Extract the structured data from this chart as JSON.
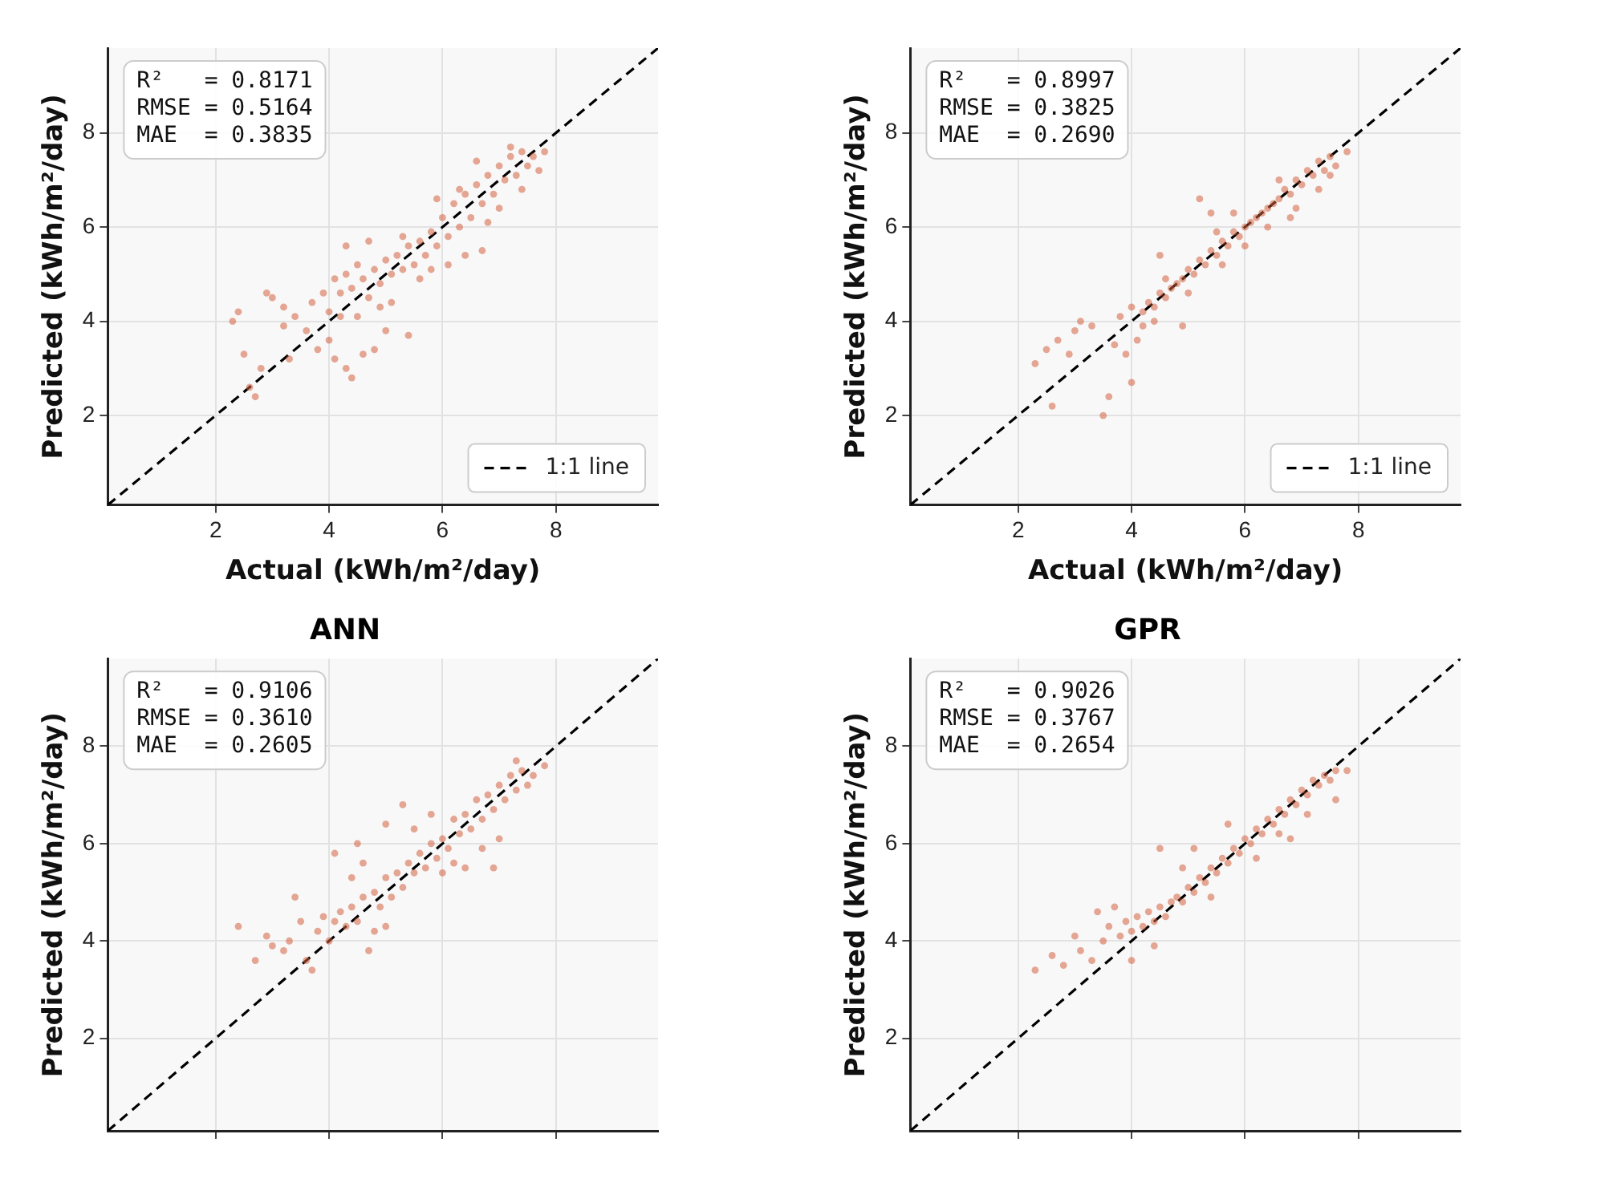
{
  "chart_data": [
    {
      "type": "scatter",
      "ylabel": "Predicted (kWh/m²/day)",
      "xlabel": "Actual (kWh/m²/day)",
      "xlim": [
        0.1,
        9.8
      ],
      "ylim": [
        0.1,
        9.8
      ],
      "xticks": [
        2,
        4,
        6,
        8
      ],
      "yticks": [
        2,
        4,
        6,
        8
      ],
      "grid": true,
      "legend": "bottom right",
      "annotations": [
        "R²   = 0.8171",
        "RMSE = 0.5164",
        "MAE  = 0.3835"
      ],
      "series": [
        {
          "type": "scatter",
          "color": "#d4603f",
          "marker": "circle",
          "x": [
            2.3,
            2.4,
            2.5,
            2.6,
            2.7,
            2.8,
            2.9,
            3.0,
            3.2,
            3.3,
            3.6,
            3.8,
            4.0,
            4.1,
            4.3,
            4.4,
            4.6,
            4.8,
            5.0,
            5.4,
            3.9,
            4.1,
            4.2,
            4.3,
            4.4,
            4.5,
            4.6,
            4.7,
            4.8,
            4.9,
            5.0,
            5.1,
            5.2,
            5.3,
            5.4,
            5.5,
            5.6,
            5.7,
            5.8,
            5.9,
            6.0,
            6.1,
            6.2,
            6.3,
            6.4,
            6.5,
            6.6,
            6.7,
            6.8,
            6.9,
            7.0,
            7.1,
            7.2,
            7.3,
            7.4,
            7.5,
            7.6,
            7.8,
            6.7,
            6.4,
            5.9,
            5.3,
            4.3,
            6.8,
            7.4,
            7.2,
            5.6,
            4.9,
            4.0,
            3.4,
            5.1,
            6.1,
            6.3,
            7.0,
            6.6,
            7.7,
            4.7,
            4.5,
            5.8,
            3.7,
            4.2,
            3.2
          ],
          "values": [
            4.0,
            4.2,
            3.3,
            2.6,
            2.4,
            3.0,
            4.6,
            4.5,
            4.3,
            3.2,
            3.8,
            3.4,
            3.6,
            3.2,
            3.0,
            2.8,
            3.3,
            3.4,
            3.8,
            3.7,
            4.6,
            4.9,
            4.6,
            5.0,
            4.7,
            5.2,
            4.9,
            4.5,
            5.1,
            4.8,
            5.3,
            5.0,
            5.4,
            5.1,
            5.6,
            5.2,
            5.7,
            5.4,
            5.9,
            5.6,
            6.2,
            5.8,
            6.5,
            6.0,
            6.7,
            6.2,
            6.9,
            6.5,
            7.1,
            6.7,
            7.3,
            7.0,
            7.5,
            7.1,
            7.6,
            7.3,
            7.5,
            7.6,
            5.5,
            5.4,
            6.6,
            5.8,
            5.6,
            6.1,
            6.8,
            7.7,
            4.9,
            4.3,
            4.2,
            4.1,
            4.4,
            5.2,
            6.8,
            6.4,
            7.4,
            7.2,
            5.7,
            4.1,
            5.1,
            4.4,
            4.1,
            3.9
          ]
        },
        {
          "type": "line",
          "name": "1:1 line",
          "color": "#000000",
          "marker": "none",
          "line_style": "dashed",
          "x": [
            0.1,
            9.8
          ],
          "values": [
            0.1,
            9.8
          ]
        }
      ]
    },
    {
      "type": "scatter",
      "ylabel": "Predicted (kWh/m²/day)",
      "xlabel": "Actual (kWh/m²/day)",
      "xlim": [
        0.1,
        9.8
      ],
      "ylim": [
        0.1,
        9.8
      ],
      "xticks": [
        2,
        4,
        6,
        8
      ],
      "yticks": [
        2,
        4,
        6,
        8
      ],
      "grid": true,
      "legend": "bottom right",
      "annotations": [
        "R²   = 0.8997",
        "RMSE = 0.3825",
        "MAE  = 0.2690"
      ],
      "series": [
        {
          "type": "scatter",
          "color": "#d4603f",
          "marker": "circle",
          "x": [
            2.3,
            2.5,
            2.6,
            2.7,
            2.9,
            3.0,
            3.1,
            3.3,
            3.5,
            3.6,
            3.7,
            3.9,
            4.0,
            4.1,
            4.2,
            4.5,
            4.9,
            5.2,
            5.4,
            5.6,
            3.8,
            4.0,
            4.2,
            4.3,
            4.4,
            4.5,
            4.6,
            4.7,
            4.8,
            4.9,
            5.0,
            5.1,
            5.2,
            5.3,
            5.4,
            5.5,
            5.6,
            5.7,
            5.8,
            5.9,
            6.0,
            6.1,
            6.2,
            6.3,
            6.4,
            6.5,
            6.6,
            6.7,
            6.8,
            6.9,
            7.0,
            7.1,
            7.2,
            7.3,
            7.4,
            7.5,
            7.6,
            7.8,
            6.8,
            6.4,
            6.0,
            5.0,
            4.6,
            7.3,
            5.8,
            6.9,
            4.4,
            5.5,
            6.6,
            7.5
          ],
          "values": [
            3.1,
            3.4,
            2.2,
            3.6,
            3.3,
            3.8,
            4.0,
            3.9,
            2.0,
            2.4,
            3.5,
            3.3,
            2.7,
            3.6,
            3.9,
            5.4,
            3.9,
            6.6,
            6.3,
            5.2,
            4.1,
            4.3,
            4.2,
            4.4,
            4.3,
            4.6,
            4.5,
            4.7,
            4.8,
            4.9,
            5.1,
            5.0,
            5.3,
            5.2,
            5.5,
            5.4,
            5.7,
            5.6,
            5.9,
            5.8,
            6.0,
            6.1,
            6.2,
            6.3,
            6.4,
            6.5,
            6.6,
            6.8,
            6.7,
            7.0,
            6.9,
            7.2,
            7.1,
            7.4,
            7.2,
            7.5,
            7.3,
            7.6,
            6.2,
            6.0,
            5.6,
            4.6,
            4.9,
            6.8,
            6.3,
            6.4,
            4.0,
            5.9,
            7.0,
            7.1
          ]
        },
        {
          "type": "line",
          "name": "1:1 line",
          "color": "#000000",
          "marker": "none",
          "line_style": "dashed",
          "x": [
            0.1,
            9.8
          ],
          "values": [
            0.1,
            9.8
          ]
        }
      ]
    },
    {
      "type": "scatter",
      "title": "ANN",
      "ylabel": "Predicted (kWh/m²/day)",
      "xlim": [
        0.1,
        9.8
      ],
      "ylim": [
        0.1,
        9.8
      ],
      "xticks": [
        2,
        4,
        6,
        8
      ],
      "yticks": [
        2,
        4,
        6,
        8
      ],
      "grid": true,
      "tick_labels": "y",
      "annotations": [
        "R²   = 0.9106",
        "RMSE = 0.3610",
        "MAE  = 0.2605"
      ],
      "series": [
        {
          "type": "scatter",
          "color": "#d4603f",
          "marker": "circle",
          "x": [
            2.4,
            2.7,
            2.9,
            3.0,
            3.2,
            3.3,
            3.5,
            3.6,
            3.8,
            3.9,
            4.0,
            4.1,
            4.2,
            4.3,
            4.4,
            4.5,
            4.6,
            4.7,
            4.8,
            4.9,
            5.0,
            5.1,
            5.2,
            5.3,
            5.4,
            5.5,
            5.6,
            5.7,
            5.8,
            5.9,
            6.0,
            6.1,
            6.2,
            6.3,
            6.4,
            6.5,
            6.6,
            6.7,
            6.8,
            6.9,
            7.0,
            7.1,
            7.2,
            7.3,
            7.4,
            7.5,
            7.6,
            7.8,
            4.1,
            5.3,
            6.7,
            6.4,
            7.0,
            3.4,
            5.0,
            5.5,
            6.0,
            4.4,
            4.8,
            7.3,
            3.7,
            4.6,
            5.8,
            6.2,
            4.5,
            5.0,
            6.9
          ],
          "values": [
            4.3,
            3.6,
            4.1,
            3.9,
            3.8,
            4.0,
            4.4,
            3.6,
            4.2,
            4.5,
            4.0,
            4.4,
            4.6,
            4.3,
            4.7,
            4.4,
            4.9,
            3.8,
            5.0,
            4.7,
            5.3,
            4.9,
            5.4,
            5.1,
            5.6,
            5.4,
            5.8,
            5.5,
            6.0,
            5.7,
            6.1,
            5.9,
            6.5,
            6.2,
            6.6,
            6.3,
            6.9,
            6.5,
            7.0,
            6.7,
            7.2,
            6.9,
            7.4,
            7.1,
            7.5,
            7.2,
            7.4,
            7.6,
            5.8,
            6.8,
            5.9,
            5.5,
            6.1,
            4.9,
            4.3,
            6.3,
            5.4,
            5.3,
            4.2,
            7.7,
            3.4,
            5.6,
            6.6,
            5.6,
            6.0,
            6.4,
            5.5
          ]
        },
        {
          "type": "line",
          "color": "#000000",
          "marker": "none",
          "line_style": "dashed",
          "x": [
            0.1,
            9.8
          ],
          "values": [
            0.1,
            9.8
          ]
        }
      ]
    },
    {
      "type": "scatter",
      "title": "GPR",
      "ylabel": "Predicted (kWh/m²/day)",
      "xlim": [
        0.1,
        9.8
      ],
      "ylim": [
        0.1,
        9.8
      ],
      "xticks": [
        2,
        4,
        6,
        8
      ],
      "yticks": [
        2,
        4,
        6,
        8
      ],
      "grid": true,
      "tick_labels": "y",
      "annotations": [
        "R²   = 0.9026",
        "RMSE = 0.3767",
        "MAE  = 0.2654"
      ],
      "series": [
        {
          "type": "scatter",
          "color": "#d4603f",
          "marker": "circle",
          "x": [
            2.3,
            2.6,
            2.8,
            3.0,
            3.1,
            3.3,
            3.5,
            3.6,
            3.8,
            3.9,
            4.0,
            4.1,
            4.2,
            4.3,
            4.4,
            4.5,
            4.6,
            4.7,
            4.8,
            4.9,
            5.0,
            5.1,
            5.2,
            5.3,
            5.4,
            5.5,
            5.6,
            5.7,
            5.8,
            5.9,
            6.0,
            6.1,
            6.2,
            6.3,
            6.4,
            6.5,
            6.6,
            6.7,
            6.8,
            6.9,
            7.0,
            7.1,
            7.2,
            7.3,
            7.4,
            7.5,
            7.6,
            7.8,
            4.5,
            5.1,
            6.8,
            7.6,
            3.4,
            5.7,
            6.2,
            4.4,
            5.4,
            6.6,
            7.1,
            4.0,
            3.7,
            4.9
          ],
          "values": [
            3.4,
            3.7,
            3.5,
            4.1,
            3.8,
            3.6,
            4.0,
            4.3,
            4.1,
            4.4,
            4.2,
            4.5,
            4.3,
            4.6,
            4.4,
            4.7,
            4.5,
            4.8,
            4.9,
            4.8,
            5.1,
            5.0,
            5.3,
            5.2,
            5.5,
            5.4,
            5.7,
            5.6,
            5.9,
            5.8,
            6.1,
            6.0,
            6.3,
            6.2,
            6.5,
            6.4,
            6.7,
            6.6,
            6.9,
            6.8,
            7.1,
            7.0,
            7.3,
            7.2,
            7.4,
            7.3,
            7.5,
            7.5,
            5.9,
            5.9,
            6.1,
            6.9,
            4.6,
            6.4,
            5.7,
            3.9,
            4.9,
            6.2,
            6.6,
            3.6,
            4.7,
            5.5
          ]
        },
        {
          "type": "line",
          "color": "#000000",
          "marker": "none",
          "line_style": "dashed",
          "x": [
            0.1,
            9.8
          ],
          "values": [
            0.1,
            9.8
          ]
        }
      ]
    }
  ]
}
